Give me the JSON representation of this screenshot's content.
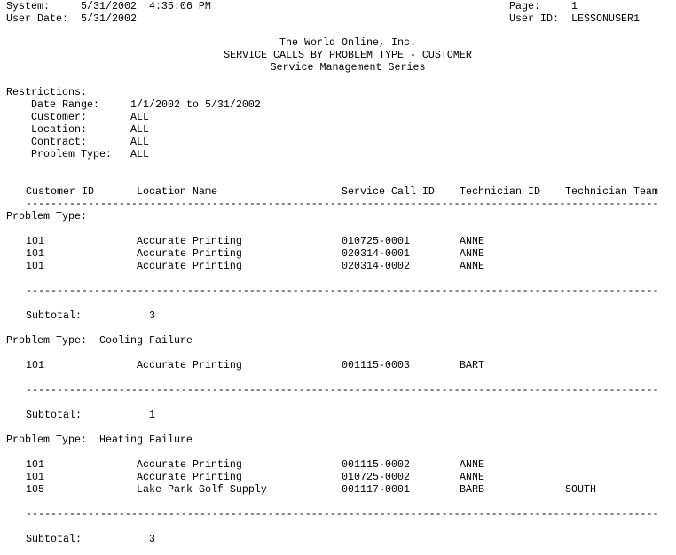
{
  "header": {
    "system_label": "System:",
    "system_value": "5/31/2002  4:35:06 PM",
    "user_date_label": "User Date:",
    "user_date_value": "5/31/2002",
    "page_label": "Page:",
    "page_value": "1",
    "user_id_label": "User ID:",
    "user_id_value": "LESSONUSER1"
  },
  "title": {
    "company": "The World Online, Inc.",
    "report": "SERVICE CALLS BY PROBLEM TYPE - CUSTOMER",
    "series": "Service Management Series"
  },
  "restrictions": {
    "label": "Restrictions:",
    "items": [
      {
        "label": "Date Range:",
        "value": "1/1/2002 to 5/31/2002"
      },
      {
        "label": "Customer:",
        "value": "ALL"
      },
      {
        "label": "Location:",
        "value": "ALL"
      },
      {
        "label": "Contract:",
        "value": "ALL"
      },
      {
        "label": "Problem Type:",
        "value": "ALL"
      }
    ]
  },
  "columns": [
    "Customer ID",
    "Location Name",
    "Service Call ID",
    "Technician ID",
    "Technician Team"
  ],
  "groups": [
    {
      "label": "Problem Type:",
      "name": "",
      "rows": [
        [
          "101",
          "Accurate Printing",
          "010725-0001",
          "ANNE",
          ""
        ],
        [
          "101",
          "Accurate Printing",
          "020314-0001",
          "ANNE",
          ""
        ],
        [
          "101",
          "Accurate Printing",
          "020314-0002",
          "ANNE",
          ""
        ]
      ],
      "subtotal_label": "Subtotal:",
      "subtotal": "3"
    },
    {
      "label": "Problem Type:",
      "name": "Cooling Failure",
      "rows": [
        [
          "101",
          "Accurate Printing",
          "001115-0003",
          "BART",
          ""
        ]
      ],
      "subtotal_label": "Subtotal:",
      "subtotal": "1"
    },
    {
      "label": "Problem Type:",
      "name": "Heating Failure",
      "rows": [
        [
          "101",
          "Accurate Printing",
          "001115-0002",
          "ANNE",
          ""
        ],
        [
          "101",
          "Accurate Printing",
          "010725-0002",
          "ANNE",
          ""
        ],
        [
          "105",
          "Lake Park Golf Supply",
          "001117-0001",
          "BARB",
          "SOUTH"
        ]
      ],
      "subtotal_label": "Subtotal:",
      "subtotal": "3"
    }
  ]
}
